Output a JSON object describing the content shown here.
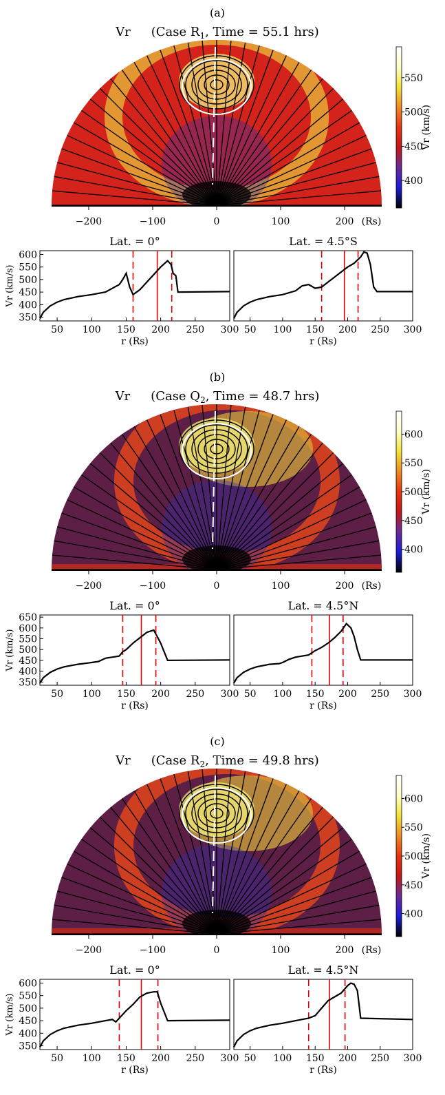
{
  "colorbar": {
    "label": "Vr (km/s)",
    "colors": [
      "#000000",
      "#1b1bd8",
      "#6a2a9a",
      "#c21717",
      "#e43510",
      "#ef8a22",
      "#f2e23a",
      "#ffffc8",
      "#ffffff"
    ]
  },
  "panels": [
    {
      "letter": "(a)",
      "title_prefix": "Vr",
      "title_case": "(Case R",
      "title_sub": "1",
      "title_time": ",  Time = 55.1 hrs)",
      "map_xticks": [
        "−200",
        "−100",
        "0",
        "100",
        "200"
      ],
      "map_xunit": "(Rs)",
      "cbar_ticks": [
        "550",
        "500",
        "450",
        "400"
      ],
      "cbar_values": [
        550,
        500,
        450,
        400
      ],
      "cbar_range": [
        360,
        595
      ],
      "bg": "#d4231a",
      "profiles": [
        {
          "title": "Lat. = 0°",
          "ylabel": "Vr (km/s)",
          "xlabel": "r (Rs)",
          "yticks": [
            "600",
            "550",
            "500",
            "450",
            "400",
            "350"
          ],
          "ytick_values": [
            600,
            550,
            500,
            450,
            400,
            350
          ],
          "xticks": [
            "50",
            "100",
            "150",
            "200",
            "250",
            "300"
          ],
          "xlim": [
            25,
            300
          ],
          "ylim": [
            335,
            615
          ],
          "vsolid": [
            195
          ],
          "vdashed": [
            160,
            216
          ],
          "x": [
            25,
            30,
            40,
            50,
            60,
            80,
            100,
            120,
            140,
            145,
            150,
            155,
            160,
            170,
            180,
            190,
            200,
            210,
            215,
            218,
            222,
            225,
            300
          ],
          "y": [
            345,
            370,
            395,
            410,
            420,
            432,
            440,
            450,
            480,
            500,
            525,
            470,
            440,
            460,
            490,
            520,
            550,
            575,
            560,
            525,
            515,
            450,
            452
          ]
        },
        {
          "title": "Lat. = 4.5°S",
          "ylabel": "",
          "xlabel": "r (Rs)",
          "yticks": [],
          "ytick_values": [],
          "xticks": [
            "50",
            "100",
            "150",
            "200",
            "250",
            "300"
          ],
          "xlim": [
            25,
            300
          ],
          "ylim": [
            335,
            615
          ],
          "vsolid": [
            195
          ],
          "vdashed": [
            160,
            216
          ],
          "x": [
            25,
            30,
            40,
            50,
            60,
            80,
            100,
            120,
            130,
            140,
            150,
            160,
            170,
            180,
            190,
            200,
            210,
            220,
            225,
            230,
            235,
            240,
            245,
            300
          ],
          "y": [
            345,
            370,
            395,
            410,
            420,
            432,
            440,
            455,
            475,
            480,
            465,
            470,
            490,
            510,
            530,
            550,
            565,
            590,
            610,
            605,
            560,
            470,
            452,
            452
          ]
        }
      ]
    },
    {
      "letter": "(b)",
      "title_prefix": "Vr",
      "title_case": "(Case Q",
      "title_sub": "2",
      "title_time": ",  Time = 48.7 hrs)",
      "map_xticks": [
        "−200",
        "−100",
        "0",
        "100",
        "200"
      ],
      "map_xunit": "(Rs)",
      "cbar_ticks": [
        "600",
        "550",
        "500",
        "450",
        "400"
      ],
      "cbar_values": [
        600,
        550,
        500,
        450,
        400
      ],
      "cbar_range": [
        360,
        640
      ],
      "bg": "#5e1f47",
      "profiles": [
        {
          "title": "Lat. = 0°",
          "ylabel": "Vr (km/s)",
          "xlabel": "r (Rs)",
          "yticks": [
            "650",
            "600",
            "550",
            "500",
            "450",
            "400",
            "350"
          ],
          "ytick_values": [
            650,
            600,
            550,
            500,
            450,
            400,
            350
          ],
          "xticks": [
            "50",
            "100",
            "150",
            "200",
            "250",
            "300"
          ],
          "xlim": [
            25,
            300
          ],
          "ylim": [
            335,
            660
          ],
          "vsolid": [
            172
          ],
          "vdashed": [
            145,
            193
          ],
          "x": [
            25,
            30,
            40,
            50,
            60,
            80,
            100,
            110,
            120,
            130,
            140,
            145,
            150,
            160,
            170,
            180,
            190,
            195,
            200,
            210,
            300
          ],
          "y": [
            345,
            370,
            395,
            410,
            420,
            432,
            440,
            445,
            460,
            465,
            470,
            490,
            500,
            530,
            555,
            580,
            590,
            560,
            530,
            450,
            452
          ]
        },
        {
          "title": "Lat. = 4.5°N",
          "ylabel": "",
          "xlabel": "r (Rs)",
          "yticks": [],
          "ytick_values": [],
          "xticks": [
            "50",
            "100",
            "150",
            "200",
            "250",
            "300"
          ],
          "xlim": [
            25,
            300
          ],
          "ylim": [
            335,
            660
          ],
          "vsolid": [
            172
          ],
          "vdashed": [
            145,
            193
          ],
          "x": [
            25,
            30,
            40,
            50,
            60,
            80,
            95,
            100,
            110,
            120,
            140,
            150,
            160,
            170,
            180,
            190,
            198,
            205,
            210,
            215,
            220,
            300
          ],
          "y": [
            345,
            370,
            395,
            410,
            420,
            432,
            435,
            440,
            455,
            465,
            475,
            495,
            510,
            530,
            555,
            585,
            620,
            600,
            560,
            500,
            452,
            452
          ]
        }
      ]
    },
    {
      "letter": "(c)",
      "title_prefix": "Vr",
      "title_case": "(Case R",
      "title_sub": "2",
      "title_time": ",  Time = 49.8 hrs)",
      "map_xticks": [
        "−200",
        "−100",
        "0",
        "100",
        "200"
      ],
      "map_xunit": "(Rs)",
      "cbar_ticks": [
        "600",
        "550",
        "500",
        "450",
        "400"
      ],
      "cbar_values": [
        600,
        550,
        500,
        450,
        400
      ],
      "cbar_range": [
        360,
        640
      ],
      "bg": "#5e1f47",
      "profiles": [
        {
          "title": "Lat. = 0°",
          "ylabel": "Vr (km/s)",
          "xlabel": "r (Rs)",
          "yticks": [
            "600",
            "550",
            "500",
            "450",
            "400",
            "350"
          ],
          "ytick_values": [
            600,
            550,
            500,
            450,
            400,
            350
          ],
          "xticks": [
            "50",
            "100",
            "150",
            "200",
            "250",
            "300"
          ],
          "xlim": [
            25,
            300
          ],
          "ylim": [
            335,
            615
          ],
          "vsolid": [
            172
          ],
          "vdashed": [
            140,
            196
          ],
          "x": [
            25,
            30,
            40,
            50,
            60,
            80,
            100,
            120,
            130,
            135,
            140,
            150,
            160,
            170,
            180,
            190,
            195,
            200,
            210,
            300
          ],
          "y": [
            345,
            370,
            395,
            410,
            420,
            432,
            440,
            450,
            455,
            445,
            460,
            490,
            515,
            545,
            560,
            565,
            565,
            520,
            450,
            452
          ]
        },
        {
          "title": "Lat. = 4.5°N",
          "ylabel": "",
          "xlabel": "r (Rs)",
          "yticks": [],
          "ytick_values": [],
          "xticks": [
            "50",
            "100",
            "150",
            "200",
            "250",
            "300"
          ],
          "xlim": [
            25,
            300
          ],
          "ylim": [
            335,
            615
          ],
          "vsolid": [
            172
          ],
          "vdashed": [
            140,
            196
          ],
          "x": [
            25,
            30,
            40,
            50,
            60,
            80,
            100,
            120,
            140,
            150,
            160,
            170,
            180,
            190,
            200,
            205,
            210,
            215,
            220,
            300
          ],
          "y": [
            345,
            370,
            395,
            410,
            420,
            432,
            440,
            450,
            460,
            470,
            500,
            530,
            545,
            560,
            590,
            600,
            595,
            570,
            460,
            455
          ]
        }
      ]
    }
  ]
}
